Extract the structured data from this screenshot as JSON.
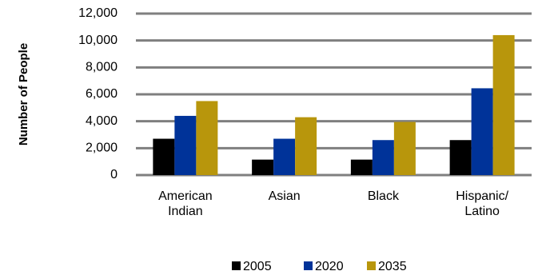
{
  "chart_data": {
    "type": "bar",
    "y_label": "Number of People",
    "categories": [
      "American Indian",
      "Asian",
      "Black",
      "Hispanic/ Latino"
    ],
    "series": [
      {
        "name": "2005",
        "color": "#000000",
        "values": [
          2700,
          1150,
          1150,
          2600
        ]
      },
      {
        "name": "2020",
        "color": "#003399",
        "values": [
          4400,
          2700,
          2600,
          6450
        ]
      },
      {
        "name": "2035",
        "color": "#b8960c",
        "values": [
          5500,
          4300,
          3950,
          10400
        ]
      }
    ],
    "ylim": [
      0,
      12000
    ],
    "yticks": [
      0,
      {
        "value": 2000,
        "label": "2,000"
      },
      {
        "value": 4000,
        "label": "4,000"
      },
      {
        "value": 6000,
        "label": "6,000"
      },
      {
        "value": 8000,
        "label": "8,000"
      },
      {
        "value": 10000,
        "label": "10,000"
      },
      {
        "value": 12000,
        "label": "12,000"
      }
    ],
    "grid": true
  }
}
